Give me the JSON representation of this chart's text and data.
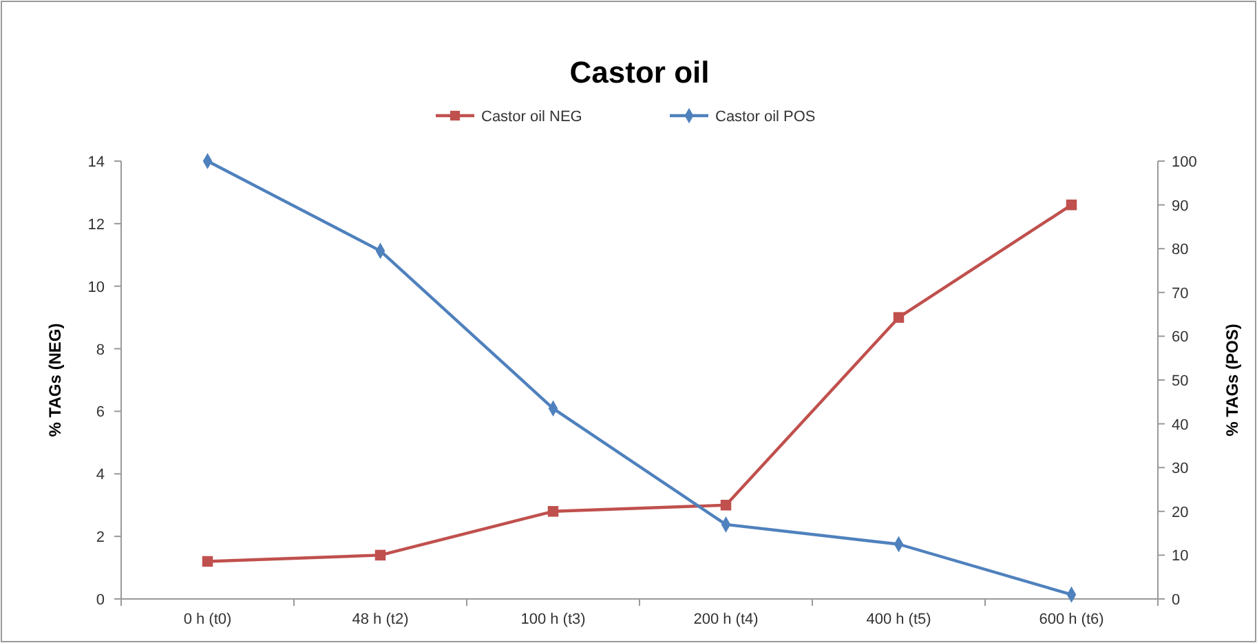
{
  "chart_data": {
    "type": "line",
    "title": "Castor oil",
    "ylabel": "% TAGs  (NEG)",
    "y2label": "% TAGs  (POS)",
    "categories": [
      "0 h (t0)",
      "48 h (t2)",
      "100 h (t3)",
      "200 h (t4)",
      "400 h (t5)",
      "600 h (t6)"
    ],
    "series": [
      {
        "name": "Castor oil NEG",
        "color": "#c0504d",
        "marker": "square",
        "values": [
          1.2,
          1.4,
          2.8,
          3.0,
          9.0,
          12.6
        ]
      },
      {
        "name": "Castor oil POS",
        "color": "#4f81bd",
        "marker": "diamond",
        "axis": "y2",
        "values": [
          100,
          79.5,
          43.5,
          17,
          12.5,
          1
        ]
      }
    ],
    "ylim": [
      0,
      14
    ],
    "yticks": [
      0,
      2,
      4,
      6,
      8,
      10,
      12,
      14
    ],
    "y2lim": [
      0,
      100
    ],
    "y2ticks": [
      0,
      10,
      20,
      30,
      40,
      50,
      60,
      70,
      80,
      90,
      100
    ],
    "legend": "top",
    "grid": false
  }
}
